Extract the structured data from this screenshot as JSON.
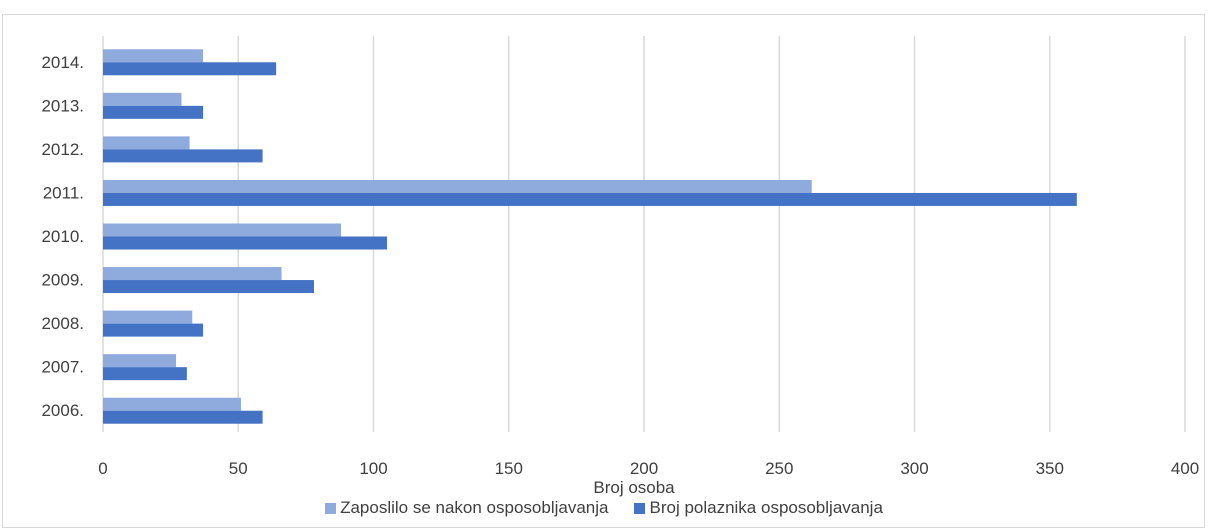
{
  "chart_data": {
    "type": "bar",
    "orientation": "horizontal",
    "categories": [
      "2006.",
      "2007.",
      "2008.",
      "2009.",
      "2010.",
      "2011.",
      "2012.",
      "2013.",
      "2014."
    ],
    "series": [
      {
        "name": "Zaposlilo se nakon osposobljavanja",
        "values": [
          51,
          27,
          33,
          66,
          88,
          262,
          32,
          29,
          37
        ],
        "color": "#8faadc"
      },
      {
        "name": "Broj polaznika osposobljavanja",
        "values": [
          59,
          31,
          37,
          78,
          105,
          360,
          59,
          37,
          64
        ],
        "color": "#4472c4"
      }
    ],
    "xlabel": "Broj osoba",
    "xlim": [
      0,
      400
    ],
    "xticks": [
      0,
      50,
      100,
      150,
      200,
      250,
      300,
      350,
      400
    ],
    "grid": true,
    "legend_position": "bottom"
  }
}
